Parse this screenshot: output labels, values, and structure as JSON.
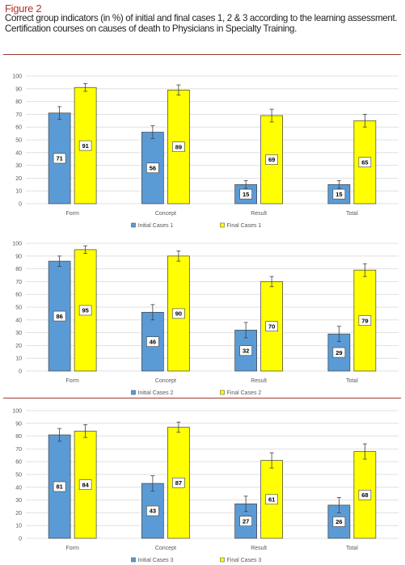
{
  "figure": {
    "label": "Figure 2",
    "caption": "Correct group indicators (in %) of initial and final cases 1, 2 & 3 according to the learning assessment. Certification courses on causes of death to Physicians in Specialty Training."
  },
  "colors": {
    "initial": "#5b9bd5",
    "final": "#ffff00",
    "rule": "#9c3a2e",
    "label": "#b0362c"
  },
  "chart_data": [
    {
      "type": "bar",
      "categories": [
        "Form",
        "Concept",
        "Result",
        "Total"
      ],
      "ylim": [
        0,
        100
      ],
      "yticks": [
        0,
        10,
        20,
        30,
        40,
        50,
        60,
        70,
        80,
        90,
        100
      ],
      "grid": true,
      "legend": "bottom-center",
      "series": [
        {
          "name": "Initial Cases 1",
          "values": [
            71,
            56,
            15,
            15
          ],
          "error": [
            5,
            5,
            3,
            3
          ]
        },
        {
          "name": "Final Cases 1",
          "values": [
            91,
            89,
            69,
            65
          ],
          "error": [
            3,
            4,
            5,
            5
          ]
        }
      ]
    },
    {
      "type": "bar",
      "categories": [
        "Form",
        "Concept",
        "Result",
        "Total"
      ],
      "ylim": [
        0,
        100
      ],
      "yticks": [
        0,
        10,
        20,
        30,
        40,
        50,
        60,
        70,
        80,
        90,
        100
      ],
      "grid": true,
      "legend": "bottom-center",
      "series": [
        {
          "name": "Initial Cases 2",
          "values": [
            86,
            46,
            32,
            29
          ],
          "error": [
            4,
            6,
            6,
            6
          ]
        },
        {
          "name": "Final Cases 2",
          "values": [
            95,
            90,
            70,
            79
          ],
          "error": [
            3,
            4,
            4,
            5
          ]
        }
      ]
    },
    {
      "type": "bar",
      "categories": [
        "Form",
        "Concept",
        "Result",
        "Total"
      ],
      "ylim": [
        0,
        100
      ],
      "yticks": [
        0,
        10,
        20,
        30,
        40,
        50,
        60,
        70,
        80,
        90,
        100
      ],
      "grid": true,
      "legend": "bottom-center",
      "series": [
        {
          "name": "Initial Cases 3",
          "values": [
            81,
            43,
            27,
            26
          ],
          "error": [
            5,
            6,
            6,
            6
          ]
        },
        {
          "name": "Final Cases 3",
          "values": [
            84,
            87,
            61,
            68
          ],
          "error": [
            5,
            4,
            6,
            6
          ]
        }
      ]
    }
  ]
}
